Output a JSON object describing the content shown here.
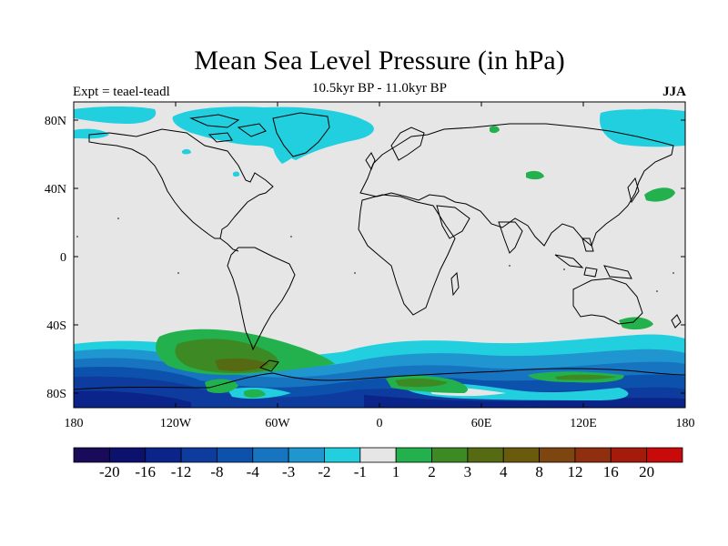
{
  "title": "Mean Sea Level Pressure (in hPa)",
  "subtitle": "10.5kyr BP - 11.0kyr BP",
  "experiment": "Expt = teael-teadl",
  "season": "JJA",
  "lat_ticks": [
    "80N",
    "40N",
    "0",
    "40S",
    "80S"
  ],
  "lon_ticks": [
    "180",
    "120W",
    "60W",
    "0",
    "60E",
    "120E",
    "180"
  ],
  "colorbar": {
    "colors": [
      "#1a0a5a",
      "#0c116e",
      "#0a2489",
      "#0d3c9e",
      "#0c52ad",
      "#1774c1",
      "#1f96cf",
      "#22cfde",
      "#e6e6e6",
      "#22b14c",
      "#3d8a24",
      "#556a13",
      "#6a5a0d",
      "#7d4510",
      "#8f2f10",
      "#a41b0c",
      "#c80a0a"
    ],
    "labels": [
      "-20",
      "-16",
      "-12",
      "-8",
      "-4",
      "-3",
      "-2",
      "-1",
      "1",
      "2",
      "3",
      "4",
      "8",
      "12",
      "16",
      "20"
    ]
  },
  "colors": {
    "background": "#e6e6e6",
    "negative_light": "#22cfde",
    "positive_light": "#22b14c"
  }
}
